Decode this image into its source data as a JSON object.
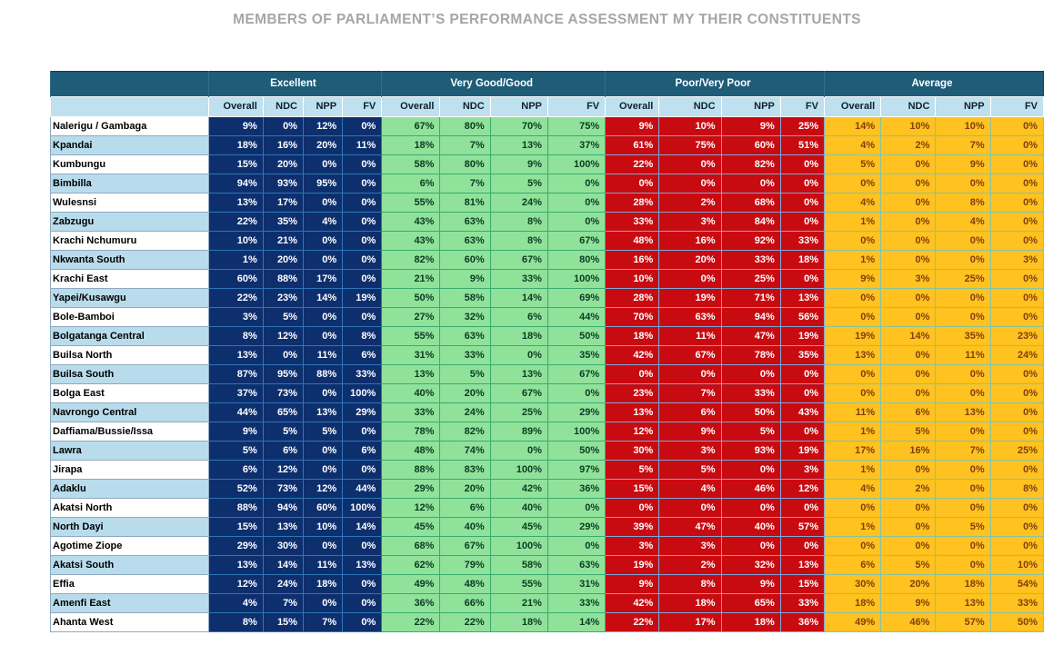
{
  "title": "MEMBERS OF PARLIAMENT’S PERFORMANCE ASSESSMENT MY THEIR CONSTITUENTS",
  "colors": {
    "title_gray": "#a6a6a6",
    "group_header_teal": "#1e5c78",
    "subheader_blue": "#bfe0ef",
    "row_stripe_blue": "#b8dcec",
    "excellent_navy": "#0e2f6e",
    "very_good_green": "#90e29b",
    "poor_red": "#c80b11",
    "average_yellow": "#ffc220",
    "yellow_text_brown": "#7f3f0c"
  },
  "chart_data": {
    "type": "table",
    "title": "MEMBERS OF PARLIAMENT’S PERFORMANCE ASSESSMENT MY THEIR CONSTITUENTS",
    "name_column_header": "",
    "column_groups": [
      {
        "key": "excellent",
        "label": "Excellent",
        "columns": [
          "Overall",
          "NDC",
          "NPP",
          "FV"
        ]
      },
      {
        "key": "very_good_good",
        "label": "Very Good/Good",
        "columns": [
          "Overall",
          "NDC",
          "NPP",
          "FV"
        ]
      },
      {
        "key": "poor_very_poor",
        "label": "Poor/Very Poor",
        "columns": [
          "Overall",
          "NDC",
          "NPP",
          "FV"
        ]
      },
      {
        "key": "average",
        "label": "Average",
        "columns": [
          "Overall",
          "NDC",
          "NPP",
          "FV"
        ]
      }
    ],
    "rows": [
      {
        "name": "Nalerigu / Gambaga",
        "excellent": [
          "9%",
          "0%",
          "12%",
          "0%"
        ],
        "very_good_good": [
          "67%",
          "80%",
          "70%",
          "75%"
        ],
        "poor_very_poor": [
          "9%",
          "10%",
          "9%",
          "25%"
        ],
        "average": [
          "14%",
          "10%",
          "10%",
          "0%"
        ]
      },
      {
        "name": "Kpandai",
        "excellent": [
          "18%",
          "16%",
          "20%",
          "11%"
        ],
        "very_good_good": [
          "18%",
          "7%",
          "13%",
          "37%"
        ],
        "poor_very_poor": [
          "61%",
          "75%",
          "60%",
          "51%"
        ],
        "average": [
          "4%",
          "2%",
          "7%",
          "0%"
        ]
      },
      {
        "name": "Kumbungu",
        "excellent": [
          "15%",
          "20%",
          "0%",
          "0%"
        ],
        "very_good_good": [
          "58%",
          "80%",
          "9%",
          "100%"
        ],
        "poor_very_poor": [
          "22%",
          "0%",
          "82%",
          "0%"
        ],
        "average": [
          "5%",
          "0%",
          "9%",
          "0%"
        ]
      },
      {
        "name": "Bimbilla",
        "excellent": [
          "94%",
          "93%",
          "95%",
          "0%"
        ],
        "very_good_good": [
          "6%",
          "7%",
          "5%",
          "0%"
        ],
        "poor_very_poor": [
          "0%",
          "0%",
          "0%",
          "0%"
        ],
        "average": [
          "0%",
          "0%",
          "0%",
          "0%"
        ]
      },
      {
        "name": "Wulesnsi",
        "excellent": [
          "13%",
          "17%",
          "0%",
          "0%"
        ],
        "very_good_good": [
          "55%",
          "81%",
          "24%",
          "0%"
        ],
        "poor_very_poor": [
          "28%",
          "2%",
          "68%",
          "0%"
        ],
        "average": [
          "4%",
          "0%",
          "8%",
          "0%"
        ]
      },
      {
        "name": "Zabzugu",
        "excellent": [
          "22%",
          "35%",
          "4%",
          "0%"
        ],
        "very_good_good": [
          "43%",
          "63%",
          "8%",
          "0%"
        ],
        "poor_very_poor": [
          "33%",
          "3%",
          "84%",
          "0%"
        ],
        "average": [
          "1%",
          "0%",
          "4%",
          "0%"
        ]
      },
      {
        "name": "Krachi Nchumuru",
        "excellent": [
          "10%",
          "21%",
          "0%",
          "0%"
        ],
        "very_good_good": [
          "43%",
          "63%",
          "8%",
          "67%"
        ],
        "poor_very_poor": [
          "48%",
          "16%",
          "92%",
          "33%"
        ],
        "average": [
          "0%",
          "0%",
          "0%",
          "0%"
        ]
      },
      {
        "name": "Nkwanta South",
        "excellent": [
          "1%",
          "20%",
          "0%",
          "0%"
        ],
        "very_good_good": [
          "82%",
          "60%",
          "67%",
          "80%"
        ],
        "poor_very_poor": [
          "16%",
          "20%",
          "33%",
          "18%"
        ],
        "average": [
          "1%",
          "0%",
          "0%",
          "3%"
        ]
      },
      {
        "name": "Krachi East",
        "excellent": [
          "60%",
          "88%",
          "17%",
          "0%"
        ],
        "very_good_good": [
          "21%",
          "9%",
          "33%",
          "100%"
        ],
        "poor_very_poor": [
          "10%",
          "0%",
          "25%",
          "0%"
        ],
        "average": [
          "9%",
          "3%",
          "25%",
          "0%"
        ]
      },
      {
        "name": "Yapei/Kusawgu",
        "excellent": [
          "22%",
          "23%",
          "14%",
          "19%"
        ],
        "very_good_good": [
          "50%",
          "58%",
          "14%",
          "69%"
        ],
        "poor_very_poor": [
          "28%",
          "19%",
          "71%",
          "13%"
        ],
        "average": [
          "0%",
          "0%",
          "0%",
          "0%"
        ]
      },
      {
        "name": "Bole-Bamboi",
        "excellent": [
          "3%",
          "5%",
          "0%",
          "0%"
        ],
        "very_good_good": [
          "27%",
          "32%",
          "6%",
          "44%"
        ],
        "poor_very_poor": [
          "70%",
          "63%",
          "94%",
          "56%"
        ],
        "average": [
          "0%",
          "0%",
          "0%",
          "0%"
        ]
      },
      {
        "name": "Bolgatanga Central",
        "excellent": [
          "8%",
          "12%",
          "0%",
          "8%"
        ],
        "very_good_good": [
          "55%",
          "63%",
          "18%",
          "50%"
        ],
        "poor_very_poor": [
          "18%",
          "11%",
          "47%",
          "19%"
        ],
        "average": [
          "19%",
          "14%",
          "35%",
          "23%"
        ]
      },
      {
        "name": "Builsa North",
        "excellent": [
          "13%",
          "0%",
          "11%",
          "6%"
        ],
        "very_good_good": [
          "31%",
          "33%",
          "0%",
          "35%"
        ],
        "poor_very_poor": [
          "42%",
          "67%",
          "78%",
          "35%"
        ],
        "average": [
          "13%",
          "0%",
          "11%",
          "24%"
        ]
      },
      {
        "name": "Builsa South",
        "excellent": [
          "87%",
          "95%",
          "88%",
          "33%"
        ],
        "very_good_good": [
          "13%",
          "5%",
          "13%",
          "67%"
        ],
        "poor_very_poor": [
          "0%",
          "0%",
          "0%",
          "0%"
        ],
        "average": [
          "0%",
          "0%",
          "0%",
          "0%"
        ]
      },
      {
        "name": "Bolga East",
        "excellent": [
          "37%",
          "73%",
          "0%",
          "100%"
        ],
        "very_good_good": [
          "40%",
          "20%",
          "67%",
          "0%"
        ],
        "poor_very_poor": [
          "23%",
          "7%",
          "33%",
          "0%"
        ],
        "average": [
          "0%",
          "0%",
          "0%",
          "0%"
        ]
      },
      {
        "name": "Navrongo Central",
        "excellent": [
          "44%",
          "65%",
          "13%",
          "29%"
        ],
        "very_good_good": [
          "33%",
          "24%",
          "25%",
          "29%"
        ],
        "poor_very_poor": [
          "13%",
          "6%",
          "50%",
          "43%"
        ],
        "average": [
          "11%",
          "6%",
          "13%",
          "0%"
        ]
      },
      {
        "name": "Daffiama/Bussie/Issa",
        "excellent": [
          "9%",
          "5%",
          "5%",
          "0%"
        ],
        "very_good_good": [
          "78%",
          "82%",
          "89%",
          "100%"
        ],
        "poor_very_poor": [
          "12%",
          "9%",
          "5%",
          "0%"
        ],
        "average": [
          "1%",
          "5%",
          "0%",
          "0%"
        ]
      },
      {
        "name": "Lawra",
        "excellent": [
          "5%",
          "6%",
          "0%",
          "6%"
        ],
        "very_good_good": [
          "48%",
          "74%",
          "0%",
          "50%"
        ],
        "poor_very_poor": [
          "30%",
          "3%",
          "93%",
          "19%"
        ],
        "average": [
          "17%",
          "16%",
          "7%",
          "25%"
        ]
      },
      {
        "name": "Jirapa",
        "excellent": [
          "6%",
          "12%",
          "0%",
          "0%"
        ],
        "very_good_good": [
          "88%",
          "83%",
          "100%",
          "97%"
        ],
        "poor_very_poor": [
          "5%",
          "5%",
          "0%",
          "3%"
        ],
        "average": [
          "1%",
          "0%",
          "0%",
          "0%"
        ]
      },
      {
        "name": "Adaklu",
        "excellent": [
          "52%",
          "73%",
          "12%",
          "44%"
        ],
        "very_good_good": [
          "29%",
          "20%",
          "42%",
          "36%"
        ],
        "poor_very_poor": [
          "15%",
          "4%",
          "46%",
          "12%"
        ],
        "average": [
          "4%",
          "2%",
          "0%",
          "8%"
        ]
      },
      {
        "name": "Akatsi North",
        "excellent": [
          "88%",
          "94%",
          "60%",
          "100%"
        ],
        "very_good_good": [
          "12%",
          "6%",
          "40%",
          "0%"
        ],
        "poor_very_poor": [
          "0%",
          "0%",
          "0%",
          "0%"
        ],
        "average": [
          "0%",
          "0%",
          "0%",
          "0%"
        ]
      },
      {
        "name": "North Dayi",
        "excellent": [
          "15%",
          "13%",
          "10%",
          "14%"
        ],
        "very_good_good": [
          "45%",
          "40%",
          "45%",
          "29%"
        ],
        "poor_very_poor": [
          "39%",
          "47%",
          "40%",
          "57%"
        ],
        "average": [
          "1%",
          "0%",
          "5%",
          "0%"
        ]
      },
      {
        "name": "Agotime Ziope",
        "excellent": [
          "29%",
          "30%",
          "0%",
          "0%"
        ],
        "very_good_good": [
          "68%",
          "67%",
          "100%",
          "0%"
        ],
        "poor_very_poor": [
          "3%",
          "3%",
          "0%",
          "0%"
        ],
        "average": [
          "0%",
          "0%",
          "0%",
          "0%"
        ]
      },
      {
        "name": "Akatsi South",
        "excellent": [
          "13%",
          "14%",
          "11%",
          "13%"
        ],
        "very_good_good": [
          "62%",
          "79%",
          "58%",
          "63%"
        ],
        "poor_very_poor": [
          "19%",
          "2%",
          "32%",
          "13%"
        ],
        "average": [
          "6%",
          "5%",
          "0%",
          "10%"
        ]
      },
      {
        "name": "Effia",
        "excellent": [
          "12%",
          "24%",
          "18%",
          "0%"
        ],
        "very_good_good": [
          "49%",
          "48%",
          "55%",
          "31%"
        ],
        "poor_very_poor": [
          "9%",
          "8%",
          "9%",
          "15%"
        ],
        "average": [
          "30%",
          "20%",
          "18%",
          "54%"
        ]
      },
      {
        "name": "Amenfi East",
        "excellent": [
          "4%",
          "7%",
          "0%",
          "0%"
        ],
        "very_good_good": [
          "36%",
          "66%",
          "21%",
          "33%"
        ],
        "poor_very_poor": [
          "42%",
          "18%",
          "65%",
          "33%"
        ],
        "average": [
          "18%",
          "9%",
          "13%",
          "33%"
        ]
      },
      {
        "name": "Ahanta West",
        "excellent": [
          "8%",
          "15%",
          "7%",
          "0%"
        ],
        "very_good_good": [
          "22%",
          "22%",
          "18%",
          "14%"
        ],
        "poor_very_poor": [
          "22%",
          "17%",
          "18%",
          "36%"
        ],
        "average": [
          "49%",
          "46%",
          "57%",
          "50%"
        ]
      }
    ],
    "layout": {
      "name_col_width": 173,
      "group_col_widths": {
        "excellent": [
          60,
          44,
          43,
          43
        ],
        "very_good_good": [
          64,
          55,
          63,
          63
        ],
        "poor_very_poor": [
          59,
          68,
          65,
          48
        ],
        "average": [
          62,
          60,
          60,
          58
        ]
      }
    }
  }
}
